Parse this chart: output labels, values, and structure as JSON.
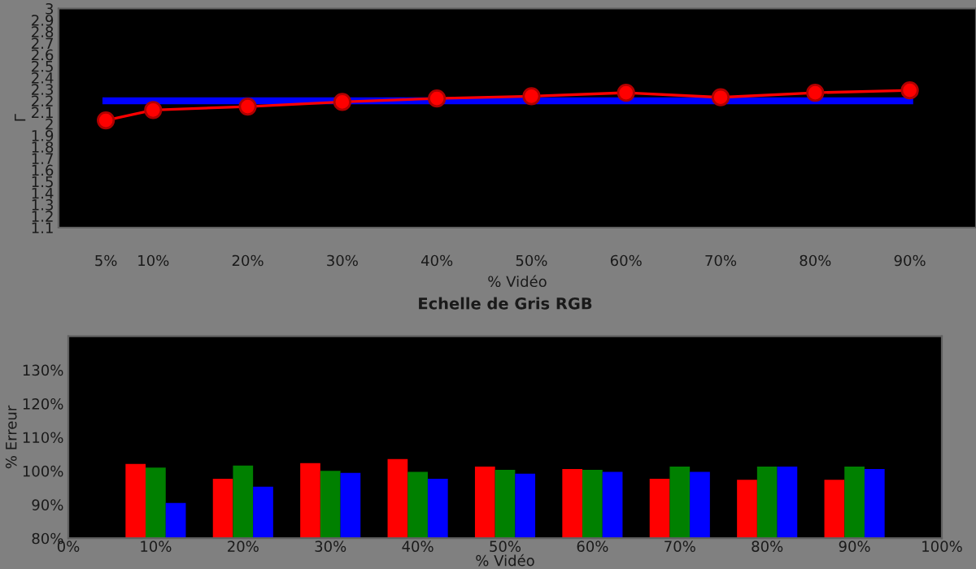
{
  "chart_data": [
    {
      "type": "line",
      "ylabel": "Γ",
      "xlabel": "% Vidéo",
      "x": [
        5,
        10,
        20,
        30,
        40,
        50,
        60,
        70,
        80,
        90
      ],
      "series": [
        {
          "color": "#0000ff",
          "marker": "none",
          "values": [
            2.2,
            2.2,
            2.2,
            2.2,
            2.2,
            2.2,
            2.2,
            2.2,
            2.2,
            2.2
          ]
        },
        {
          "color": "#ff0000",
          "marker": "circle",
          "values": [
            2.03,
            2.12,
            2.15,
            2.19,
            2.22,
            2.24,
            2.27,
            2.23,
            2.27,
            2.29
          ]
        }
      ],
      "xlim": [
        0,
        97
      ],
      "xticks": [
        {
          "value": 5,
          "label": "5%"
        },
        {
          "value": 10,
          "label": "10%"
        },
        {
          "value": 20,
          "label": "20%"
        },
        {
          "value": 30,
          "label": "30%"
        },
        {
          "value": 40,
          "label": "40%"
        },
        {
          "value": 50,
          "label": "50%"
        },
        {
          "value": 60,
          "label": "60%"
        },
        {
          "value": 70,
          "label": "70%"
        },
        {
          "value": 80,
          "label": "80%"
        },
        {
          "value": 90,
          "label": "90%"
        }
      ],
      "ylim": [
        1.1,
        3.0
      ],
      "yticks": [
        1.1,
        1.2,
        1.3,
        1.4,
        1.5,
        1.6,
        1.7,
        1.8,
        1.9,
        2,
        2.1,
        2.2,
        2.3,
        2.4,
        2.5,
        2.6,
        2.7,
        2.8,
        2.9,
        3
      ],
      "grid": false,
      "legend": false
    },
    {
      "type": "bar",
      "title": "Echelle de Gris RGB",
      "ylabel": "% Erreur",
      "xlabel": "% Vidéo",
      "x": [
        10,
        20,
        30,
        40,
        50,
        60,
        70,
        80,
        90
      ],
      "series": [
        {
          "color": "#ff0000",
          "values": [
            102.1,
            97.7,
            102.3,
            103.5,
            101.3,
            100.6,
            97.7,
            97.4,
            97.4
          ]
        },
        {
          "color": "#008000",
          "values": [
            101.0,
            101.6,
            100.0,
            99.7,
            100.3,
            100.3,
            101.3,
            101.3,
            101.3
          ]
        },
        {
          "color": "#0000ff",
          "values": [
            90.5,
            95.3,
            99.4,
            97.7,
            99.2,
            99.7,
            99.7,
            101.3,
            100.6
          ]
        }
      ],
      "xlim": [
        0,
        100
      ],
      "xticks": [
        {
          "value": 0,
          "label": "0%"
        },
        {
          "value": 10,
          "label": "10%"
        },
        {
          "value": 20,
          "label": "20%"
        },
        {
          "value": 30,
          "label": "30%"
        },
        {
          "value": 40,
          "label": "40%"
        },
        {
          "value": 50,
          "label": "50%"
        },
        {
          "value": 60,
          "label": "60%"
        },
        {
          "value": 70,
          "label": "70%"
        },
        {
          "value": 80,
          "label": "80%"
        },
        {
          "value": 90,
          "label": "90%"
        },
        {
          "value": 100,
          "label": "100%"
        }
      ],
      "ylim": [
        80,
        140
      ],
      "yticks": [
        {
          "value": 80,
          "label": "80%"
        },
        {
          "value": 90,
          "label": "90%"
        },
        {
          "value": 100,
          "label": "100%"
        },
        {
          "value": 110,
          "label": "110%"
        },
        {
          "value": 120,
          "label": "120%"
        },
        {
          "value": 130,
          "label": "130%"
        }
      ],
      "grid": false,
      "legend": false
    }
  ]
}
